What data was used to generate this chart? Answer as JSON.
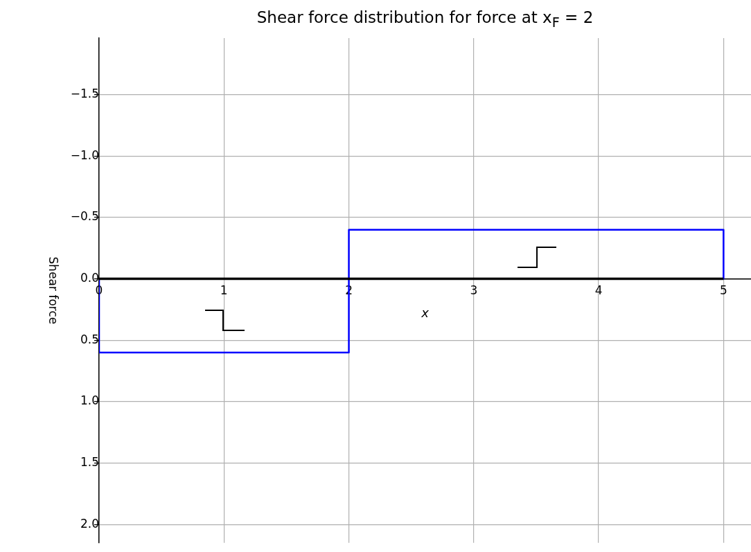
{
  "chart_data": {
    "type": "line",
    "title": "Shear force distribution for force at x$_{F}$ = 2",
    "xlabel": "x",
    "ylabel": "Shear force",
    "xlim": [
      0,
      5.22
    ],
    "xticks": [
      0,
      1,
      2,
      3,
      4,
      5
    ],
    "ylim": [
      2.15,
      -1.96
    ],
    "yticks": [
      {
        "value": -1.5,
        "label": "−1.5"
      },
      {
        "value": -1,
        "label": "−1.0"
      },
      {
        "value": -0.5,
        "label": "−0.5"
      },
      {
        "value": 0,
        "label": "0.0"
      },
      {
        "value": 0.5,
        "label": "0.5"
      },
      {
        "value": 1,
        "label": "1.0"
      },
      {
        "value": 1.5,
        "label": "1.5"
      },
      {
        "value": 2,
        "label": "2.0"
      }
    ],
    "grid": true,
    "legend": false,
    "marker": "none",
    "series": [
      {
        "color": "#000000",
        "x": [
          0,
          5
        ],
        "values": [
          0,
          0
        ]
      },
      {
        "color": "#0000ff",
        "x": [
          0,
          0,
          2,
          2,
          5,
          5
        ],
        "values": [
          0,
          0.6,
          0.6,
          -0.4,
          -0.4,
          0
        ]
      }
    ]
  }
}
